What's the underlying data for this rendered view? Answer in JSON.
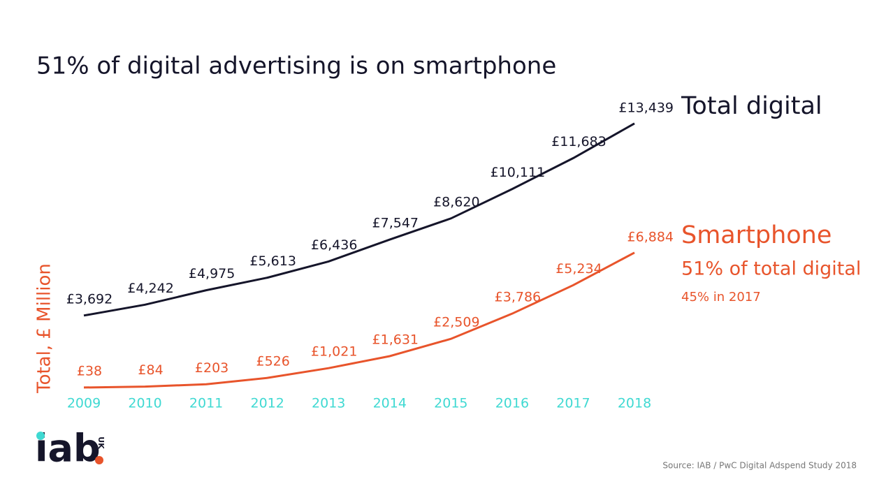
{
  "chart_data": {
    "type": "line",
    "title": "51% of digital advertising is on smartphone",
    "y_label": "Total, £ Million",
    "categories": [
      "2009",
      "2010",
      "2011",
      "2012",
      "2013",
      "2014",
      "2015",
      "2016",
      "2017",
      "2018"
    ],
    "category_color": "#3fd9d2",
    "series": [
      {
        "name": "Total digital",
        "color": "#15152a",
        "values": [
          3692,
          4242,
          4975,
          5613,
          6436,
          7547,
          8620,
          10111,
          11683,
          13439
        ],
        "value_labels": [
          "£3,692",
          "£4,242",
          "£4,975",
          "£5,613",
          "£6,436",
          "£7,547",
          "£8,620",
          "£10,111",
          "£11,683",
          "£13,439"
        ]
      },
      {
        "name": "Smartphone",
        "color": "#e8542b",
        "values": [
          38,
          84,
          203,
          526,
          1021,
          1631,
          2509,
          3786,
          5234,
          6884
        ],
        "value_labels": [
          "£38",
          "£84",
          "£203",
          "£526",
          "£1,021",
          "£1,631",
          "£2,509",
          "£3,786",
          "£5,234",
          "£6,884"
        ]
      }
    ],
    "ylim": [
      0,
      14000
    ],
    "annotations": [
      "51% of total digital",
      "45% in 2017"
    ],
    "source": "Source: IAB / PwC Digital Adspend Study 2018"
  },
  "logo": {
    "text": "iab",
    "suffix": "UK"
  }
}
